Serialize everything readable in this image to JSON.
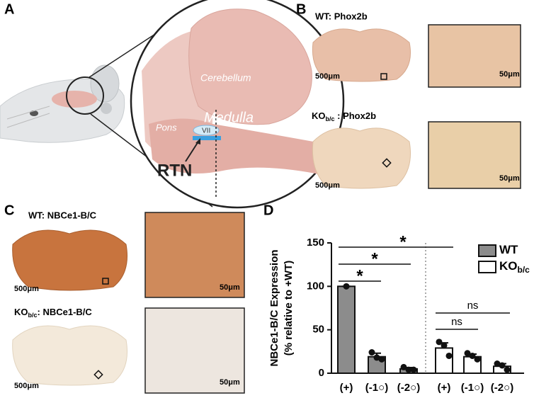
{
  "panel_labels": [
    "A",
    "B",
    "C",
    "D"
  ],
  "panel_a": {
    "cerebellum": "Cerebellum",
    "medulla": "Medulla",
    "pons": "Pons",
    "vii": "VII",
    "rtn": "RTN"
  },
  "panel_b": {
    "wt_label": "WT: Phox2b",
    "ko_prefix": "KO",
    "ko_sub": "b/c",
    "ko_suffix": " : Phox2b",
    "scale_large": "500μm",
    "scale_small": "50μm"
  },
  "panel_c": {
    "wt_label": "WT: NBCe1-B/C",
    "ko_prefix": "KO",
    "ko_sub": "b/c",
    "ko_suffix": ": NBCe1-B/C",
    "scale_large": "500μm",
    "scale_small": "50μm"
  },
  "chart_data": {
    "type": "bar",
    "ylabel": [
      "NBCe1-B/C Expression",
      "(% relative to +WT)"
    ],
    "categories": [
      "(+)",
      "(-1○)",
      "(-2○)",
      "(+)",
      "(-1○)",
      "(-2○)"
    ],
    "series": [
      {
        "name": "WT",
        "color": "#8c8c8c",
        "values": [
          100,
          19,
          5,
          null,
          null,
          null
        ],
        "errors": [
          0,
          4,
          1.5,
          null,
          null,
          null
        ],
        "points": [
          [
            100
          ],
          [
            24,
            18,
            16
          ],
          [
            7,
            4,
            4
          ],
          null,
          null,
          null
        ]
      },
      {
        "name": "KO",
        "subscript": "b/c",
        "color": "#ffffff",
        "values": [
          null,
          null,
          null,
          29,
          19,
          8
        ],
        "errors": [
          null,
          null,
          null,
          6,
          3,
          3
        ],
        "points": [
          null,
          null,
          null,
          [
            36,
            32,
            20
          ],
          [
            23,
            20,
            16
          ],
          [
            11,
            9,
            4
          ]
        ]
      }
    ],
    "ylim": [
      0,
      150
    ],
    "yticks": [
      0,
      50,
      100,
      150
    ],
    "annotations": [
      "*",
      "*",
      "*",
      "ns",
      "ns"
    ]
  }
}
